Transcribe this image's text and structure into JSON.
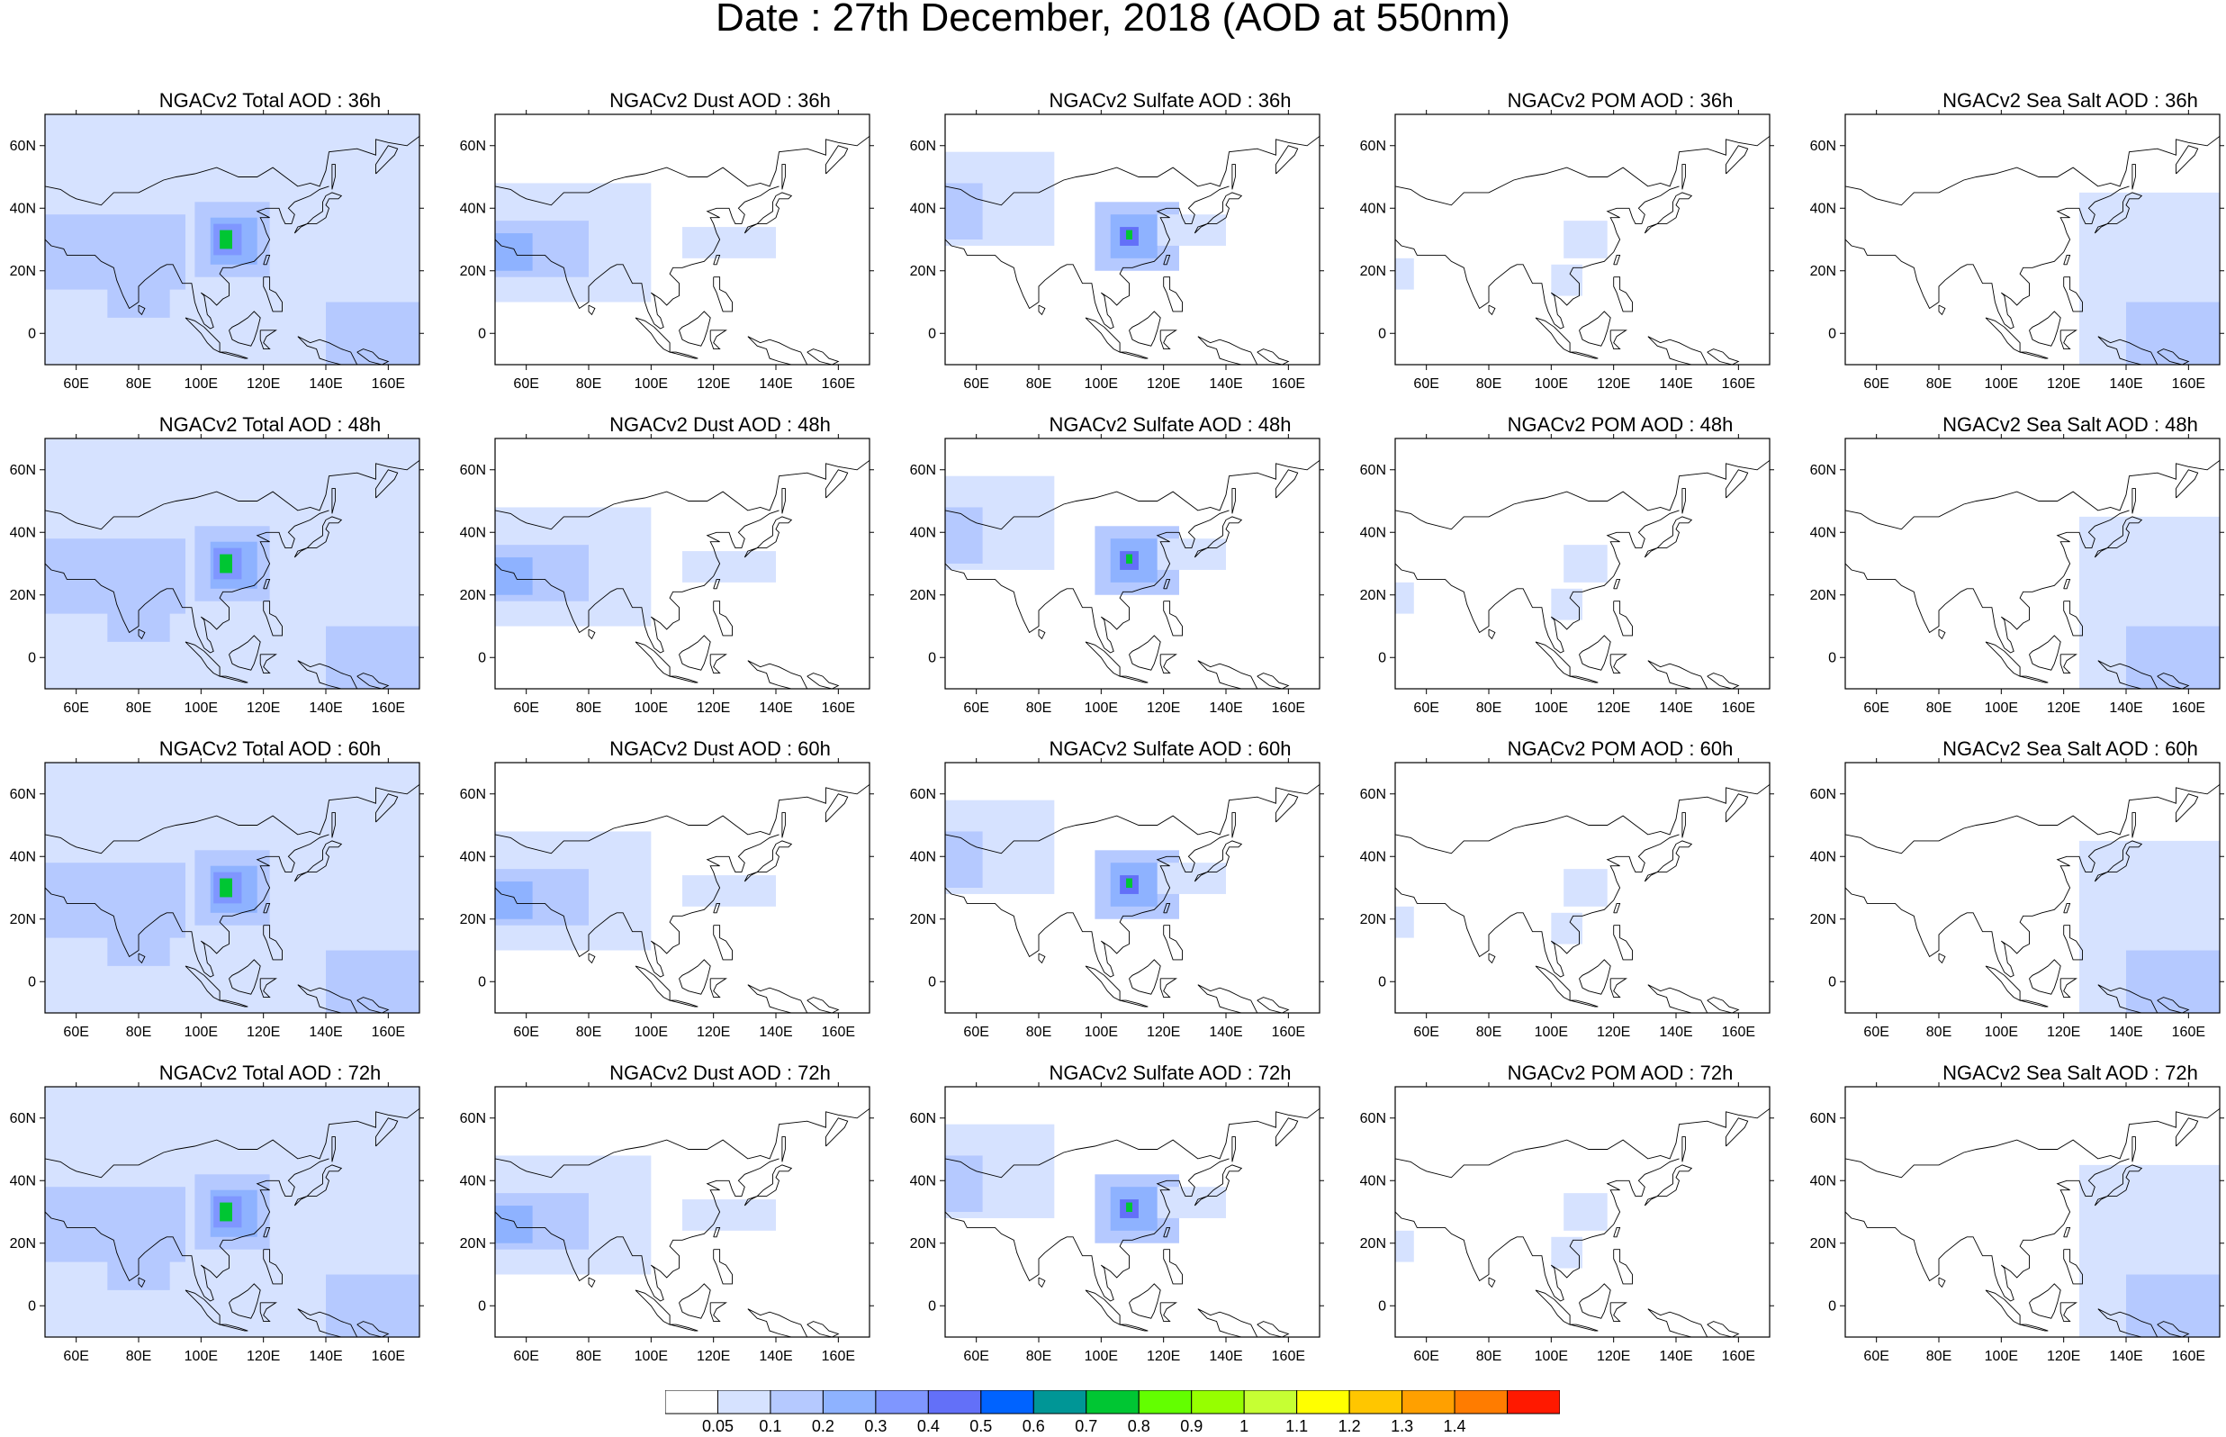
{
  "title": "Date : 27th December, 2018 (AOD at 550nm)",
  "axes": {
    "x_ticks": [
      "60E",
      "80E",
      "100E",
      "120E",
      "140E",
      "160E"
    ],
    "x_values": [
      60,
      80,
      100,
      120,
      140,
      160
    ],
    "y_ticks": [
      "60N",
      "40N",
      "20N",
      "0"
    ],
    "y_values": [
      60,
      40,
      20,
      0
    ],
    "lon_range": [
      50,
      170
    ],
    "lat_range": [
      -10,
      70
    ]
  },
  "colorbar": {
    "labels": [
      "0.05",
      "0.1",
      "0.2",
      "0.3",
      "0.4",
      "0.5",
      "0.6",
      "0.7",
      "0.8",
      "0.9",
      "1",
      "1.1",
      "1.2",
      "1.3",
      "1.4"
    ],
    "colors": [
      "#ffffff",
      "#d6e2ff",
      "#b5c9ff",
      "#8eb2ff",
      "#7f96ff",
      "#6370f8",
      "#0063ff",
      "#009696",
      "#00c633",
      "#63ff00",
      "#96ff00",
      "#c6ff33",
      "#ffff00",
      "#ffc600",
      "#ffa000",
      "#ff7c00",
      "#ff1900"
    ]
  },
  "rows": [
    {
      "hour": "36h",
      "panels": [
        {
          "title": "NGACv2 Total AOD : 36h",
          "species": "total"
        },
        {
          "title": "NGACv2 Dust AOD : 36h",
          "species": "dust"
        },
        {
          "title": "NGACv2 Sulfate AOD : 36h",
          "species": "sulfate"
        },
        {
          "title": "NGACv2 POM AOD : 36h",
          "species": "pom"
        },
        {
          "title": "NGACv2 Sea Salt AOD : 36h",
          "species": "seasalt"
        }
      ]
    },
    {
      "hour": "48h",
      "panels": [
        {
          "title": "NGACv2 Total AOD : 48h",
          "species": "total"
        },
        {
          "title": "NGACv2 Dust AOD : 48h",
          "species": "dust"
        },
        {
          "title": "NGACv2 Sulfate AOD : 48h",
          "species": "sulfate"
        },
        {
          "title": "NGACv2 POM AOD : 48h",
          "species": "pom"
        },
        {
          "title": "NGACv2 Sea Salt AOD : 48h",
          "species": "seasalt"
        }
      ]
    },
    {
      "hour": "60h",
      "panels": [
        {
          "title": "NGACv2 Total AOD : 60h",
          "species": "total"
        },
        {
          "title": "NGACv2 Dust AOD : 60h",
          "species": "dust"
        },
        {
          "title": "NGACv2 Sulfate AOD : 60h",
          "species": "sulfate"
        },
        {
          "title": "NGACv2 POM AOD : 60h",
          "species": "pom"
        },
        {
          "title": "NGACv2 Sea Salt AOD : 60h",
          "species": "seasalt"
        }
      ]
    },
    {
      "hour": "72h",
      "panels": [
        {
          "title": "NGACv2 Total AOD : 72h",
          "species": "total"
        },
        {
          "title": "NGACv2 Dust AOD : 72h",
          "species": "dust"
        },
        {
          "title": "NGACv2 Sulfate AOD : 72h",
          "species": "sulfate"
        },
        {
          "title": "NGACv2 POM AOD : 72h",
          "species": "pom"
        },
        {
          "title": "NGACv2 Sea Salt  AOD : 72h",
          "species": "seasalt"
        }
      ]
    }
  ],
  "chart_data": {
    "type": "heatmap",
    "title": "Date : 27th December, 2018 (AOD at 550nm)",
    "lon_range": [
      50,
      170
    ],
    "lat_range": [
      -10,
      70
    ],
    "levels": [
      0.05,
      0.1,
      0.2,
      0.3,
      0.4,
      0.5,
      0.6,
      0.7,
      0.8,
      0.9,
      1,
      1.1,
      1.2,
      1.3,
      1.4
    ]
  }
}
